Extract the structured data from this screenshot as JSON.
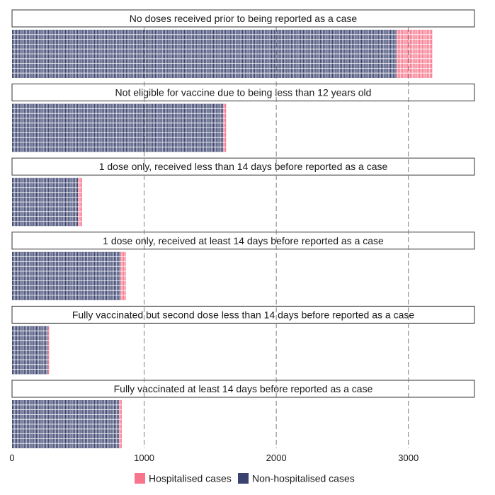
{
  "chart_data": {
    "type": "bar",
    "orientation": "horizontal",
    "stacked": true,
    "unit_per_block": 10,
    "xlim": [
      0,
      3500
    ],
    "x_ticks": [
      0,
      1000,
      2000,
      3000
    ],
    "grid": true,
    "legend_position": "bottom",
    "colors": {
      "Hospitalised cases": "#f8768c",
      "Non-hospitalised cases": "#3a436f"
    },
    "series": [
      {
        "name": "Non-hospitalised cases",
        "color": "#3a436f"
      },
      {
        "name": "Hospitalised cases",
        "color": "#f8768c"
      }
    ],
    "panels": [
      {
        "title": "No doses received prior to being reported as a case",
        "non_hospitalised": 2910,
        "hospitalised": 270
      },
      {
        "title": "Not eligible for vaccine due to being less than 12 years old",
        "non_hospitalised": 1600,
        "hospitalised": 20
      },
      {
        "title": "1 dose only, received less than 14 days before reported as a case",
        "non_hospitalised": 500,
        "hospitalised": 30
      },
      {
        "title": "1 dose only, received at least 14 days before reported as a case",
        "non_hospitalised": 820,
        "hospitalised": 40
      },
      {
        "title": "Fully vaccinated but second dose less than 14 days before reported as a case",
        "non_hospitalised": 270,
        "hospitalised": 10
      },
      {
        "title": "Fully vaccinated at least 14 days before reported as a case",
        "non_hospitalised": 810,
        "hospitalised": 20
      }
    ]
  }
}
